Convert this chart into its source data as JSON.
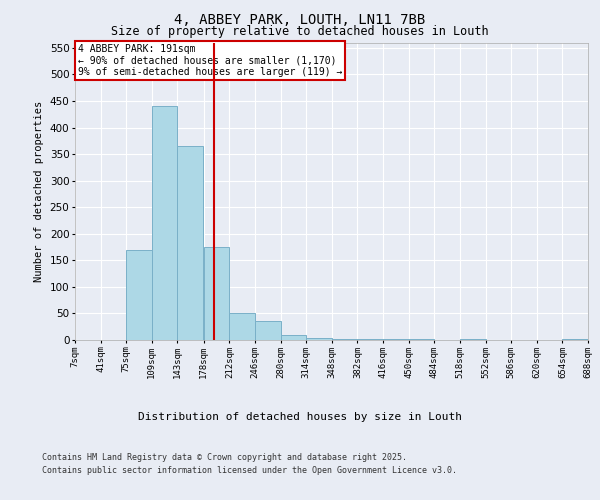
{
  "title1": "4, ABBEY PARK, LOUTH, LN11 7BB",
  "title2": "Size of property relative to detached houses in Louth",
  "xlabel": "Distribution of detached houses by size in Louth",
  "ylabel": "Number of detached properties",
  "bin_edges": [
    7,
    41,
    75,
    109,
    143,
    178,
    212,
    246,
    280,
    314,
    348,
    382,
    416,
    450,
    484,
    518,
    552,
    586,
    620,
    654,
    688
  ],
  "bar_heights": [
    0,
    0,
    170,
    440,
    365,
    175,
    50,
    35,
    10,
    3,
    2,
    1,
    1,
    1,
    0,
    1,
    0,
    0,
    0,
    1
  ],
  "bar_color": "#add8e6",
  "bar_edgecolor": "#7ab0c8",
  "property_size": 191,
  "vline_color": "#cc0000",
  "annotation_title": "4 ABBEY PARK: 191sqm",
  "annotation_line1": "← 90% of detached houses are smaller (1,170)",
  "annotation_line2": "9% of semi-detached houses are larger (119) →",
  "annotation_box_color": "#cc0000",
  "annotation_fill": "#ffffff",
  "ylim": [
    0,
    560
  ],
  "yticks": [
    0,
    50,
    100,
    150,
    200,
    250,
    300,
    350,
    400,
    450,
    500,
    550
  ],
  "footer1": "Contains HM Land Registry data © Crown copyright and database right 2025.",
  "footer2": "Contains public sector information licensed under the Open Government Licence v3.0.",
  "bg_color": "#e8ecf4",
  "plot_bg_color": "#e8ecf4"
}
